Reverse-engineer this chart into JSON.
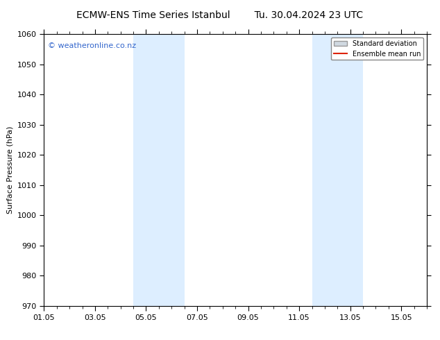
{
  "title_left": "ECMW-ENS Time Series Istanbul",
  "title_right": "Tu. 30.04.2024 23 UTC",
  "ylabel": "Surface Pressure (hPa)",
  "ylim": [
    970,
    1060
  ],
  "yticks": [
    970,
    980,
    990,
    1000,
    1010,
    1020,
    1030,
    1040,
    1050,
    1060
  ],
  "xlim": [
    0,
    15
  ],
  "xtick_labels": [
    "01.05",
    "03.05",
    "05.05",
    "07.05",
    "09.05",
    "11.05",
    "13.05",
    "15.05"
  ],
  "xtick_positions": [
    0,
    2,
    4,
    6,
    8,
    10,
    12,
    14
  ],
  "shaded_bands": [
    {
      "x_start": 3.5,
      "x_end": 5.5
    },
    {
      "x_start": 10.5,
      "x_end": 12.5
    }
  ],
  "shade_color": "#ddeeff",
  "background_color": "#ffffff",
  "watermark_text": "© weatheronline.co.nz",
  "watermark_color": "#3366cc",
  "legend_std_label": "Standard deviation",
  "legend_mean_label": "Ensemble mean run",
  "legend_std_color": "#d0d8e0",
  "legend_mean_color": "#dd2200",
  "title_fontsize": 10,
  "axis_label_fontsize": 8,
  "tick_fontsize": 8,
  "watermark_fontsize": 8
}
